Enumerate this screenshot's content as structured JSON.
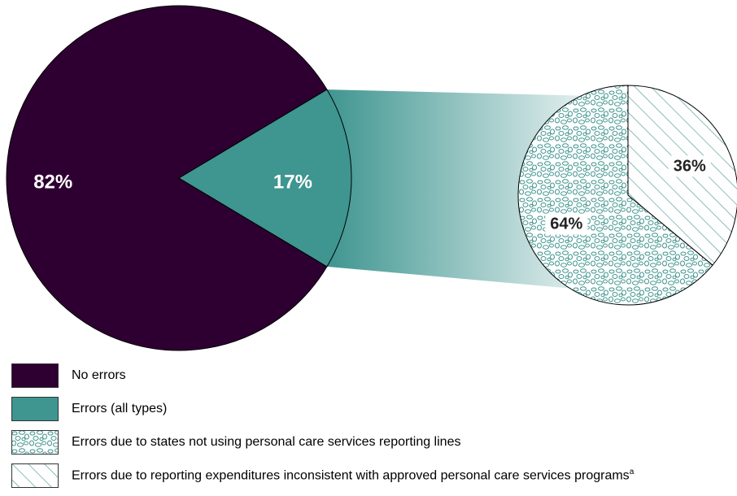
{
  "chart_data": [
    {
      "type": "pie",
      "slices": [
        {
          "label": "No errors",
          "value": 82,
          "display": "82%"
        },
        {
          "label": "Errors (all types)",
          "value": 17,
          "display": "17%"
        }
      ]
    },
    {
      "type": "pie",
      "slices": [
        {
          "label": "Errors due to states not using personal care services reporting lines",
          "value": 64,
          "display": "64%"
        },
        {
          "label": "Errors due to reporting expenditures inconsistent with approved personal care services programs",
          "value": 36,
          "display": "36%"
        }
      ]
    }
  ],
  "legend": {
    "items": [
      {
        "label": "No errors"
      },
      {
        "label": "Errors (all types)"
      },
      {
        "label": "Errors due to states not using personal care services reporting lines"
      },
      {
        "label": "Errors due to reporting expenditures inconsistent with approved personal care services programs",
        "superscript": "a"
      }
    ]
  },
  "colors": {
    "no_errors": "#2e0031",
    "errors": "#3f9590",
    "pattern": "#3f9590"
  }
}
